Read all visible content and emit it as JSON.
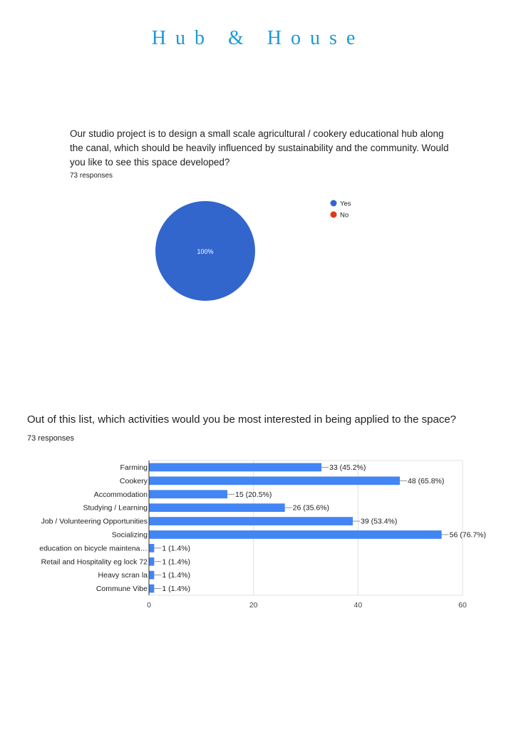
{
  "page": {
    "title": "Hub & House"
  },
  "question1": {
    "text": "Our studio project is to design a small scale agricultural / cookery educational hub along the canal, which should be heavily influenced by sustainability and the community. Would you like to see this space developed?",
    "responses": "73 responses"
  },
  "question2": {
    "text": "Out of this list, which activities would you be most interested in being applied to the space?",
    "responses": "73 responses"
  },
  "chart_data": [
    {
      "type": "pie",
      "categories": [
        "Yes",
        "No"
      ],
      "values": [
        100,
        0
      ],
      "slice_labels": [
        "100%",
        ""
      ],
      "colors": [
        "#3366cc",
        "#dc3912"
      ],
      "legend_position": "right"
    },
    {
      "type": "bar",
      "orientation": "horizontal",
      "categories": [
        "Farming",
        "Cookery",
        "Accommodation",
        "Studying / Learning",
        "Job / Volunteering Opportunities",
        "Socializing",
        "education on bicycle maintena…",
        "Retail and Hospitality eg lock 72",
        "Heavy scran la",
        "Commune Vibe"
      ],
      "values": [
        33,
        48,
        15,
        26,
        39,
        56,
        1,
        1,
        1,
        1
      ],
      "data_labels": [
        "33 (45.2%)",
        "48 (65.8%)",
        "15 (20.5%)",
        "26 (35.6%)",
        "39 (53.4%)",
        "56 (76.7%)",
        "1 (1.4%)",
        "1 (1.4%)",
        "1 (1.4%)",
        "1 (1.4%)"
      ],
      "xlim": [
        0,
        60
      ],
      "xticks": [
        0,
        20,
        40,
        60
      ],
      "grid": true,
      "bar_color": "#4285f4"
    }
  ]
}
